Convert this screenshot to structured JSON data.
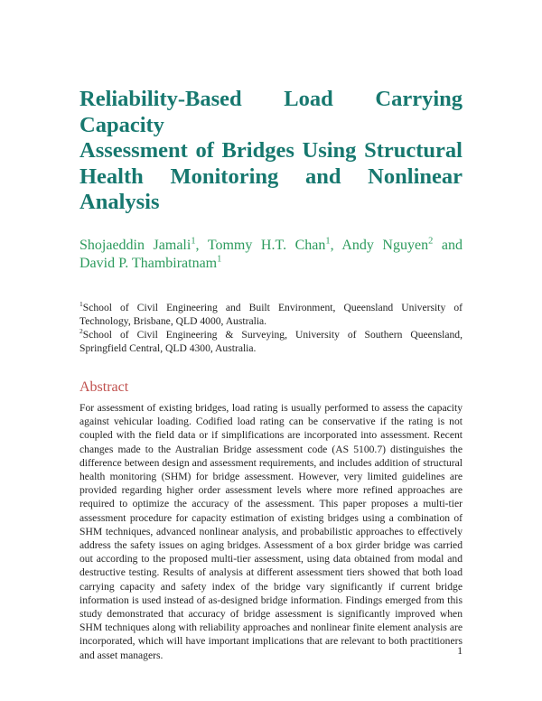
{
  "title_lines": [
    "Reliability-Based Load Carrying Capacity",
    "Assessment of Bridges Using Structural",
    "Health Monitoring and Nonlinear",
    "Analysis"
  ],
  "authors": [
    {
      "name": "Shojaeddin Jamali",
      "aff": "1",
      "sep": ", "
    },
    {
      "name": "Tommy H.T. Chan",
      "aff": "1",
      "sep": ", "
    },
    {
      "name": "Andy Nguyen",
      "aff": "2",
      "sep": " and "
    },
    {
      "name": "David P. Thambiratnam",
      "aff": "1",
      "sep": ""
    }
  ],
  "affiliations": [
    {
      "num": "1",
      "text": "School of Civil Engineering and Built Environment, Queensland University of Technology, Brisbane, QLD 4000, Australia."
    },
    {
      "num": "2",
      "text": "School of Civil Engineering & Surveying, University of Southern Queensland, Springfield Central, QLD 4300, Australia."
    }
  ],
  "abstract_heading": "Abstract",
  "abstract_lines": [
    "For assessment of existing bridges, load rating is usually performed to assess the capacity",
    "against vehicular loading. Codified load rating can be conservative if the rating is not",
    "coupled with the field data or if simplifications are incorporated into assessment. Recent",
    "changes made to the Australian Bridge assessment code (AS 5100.7) distinguishes the",
    "difference between design and assessment requirements, and includes addition of structural",
    "health monitoring (SHM) for bridge assessment. However, very limited guidelines are",
    "provided regarding higher order assessment levels where more refined approaches are",
    "required to optimize the accuracy of the assessment. This paper proposes a multi-tier",
    "assessment procedure for capacity estimation of existing bridges using a combination of",
    "SHM techniques, advanced nonlinear analysis, and probabilistic approaches to effectively",
    "address the safety issues on aging bridges. Assessment of a box girder bridge was carried",
    "out according to the proposed multi-tier assessment, using data obtained from modal and",
    "destructive testing. Results of analysis at different assessment tiers showed that both load",
    "carrying capacity and safety index of the bridge vary significantly if current bridge",
    "information is used instead of as-designed bridge information. Findings emerged from this",
    "study demonstrated that accuracy of bridge assessment is significantly improved when",
    "SHM techniques along with reliability approaches and nonlinear finite element analysis are",
    "incorporated, which will have important implications that are relevant to both practitioners",
    "and asset managers."
  ],
  "page_number": "1",
  "colors": {
    "title": "#17786f",
    "authors": "#2b9a5c",
    "abstract_heading": "#c0504d"
  }
}
